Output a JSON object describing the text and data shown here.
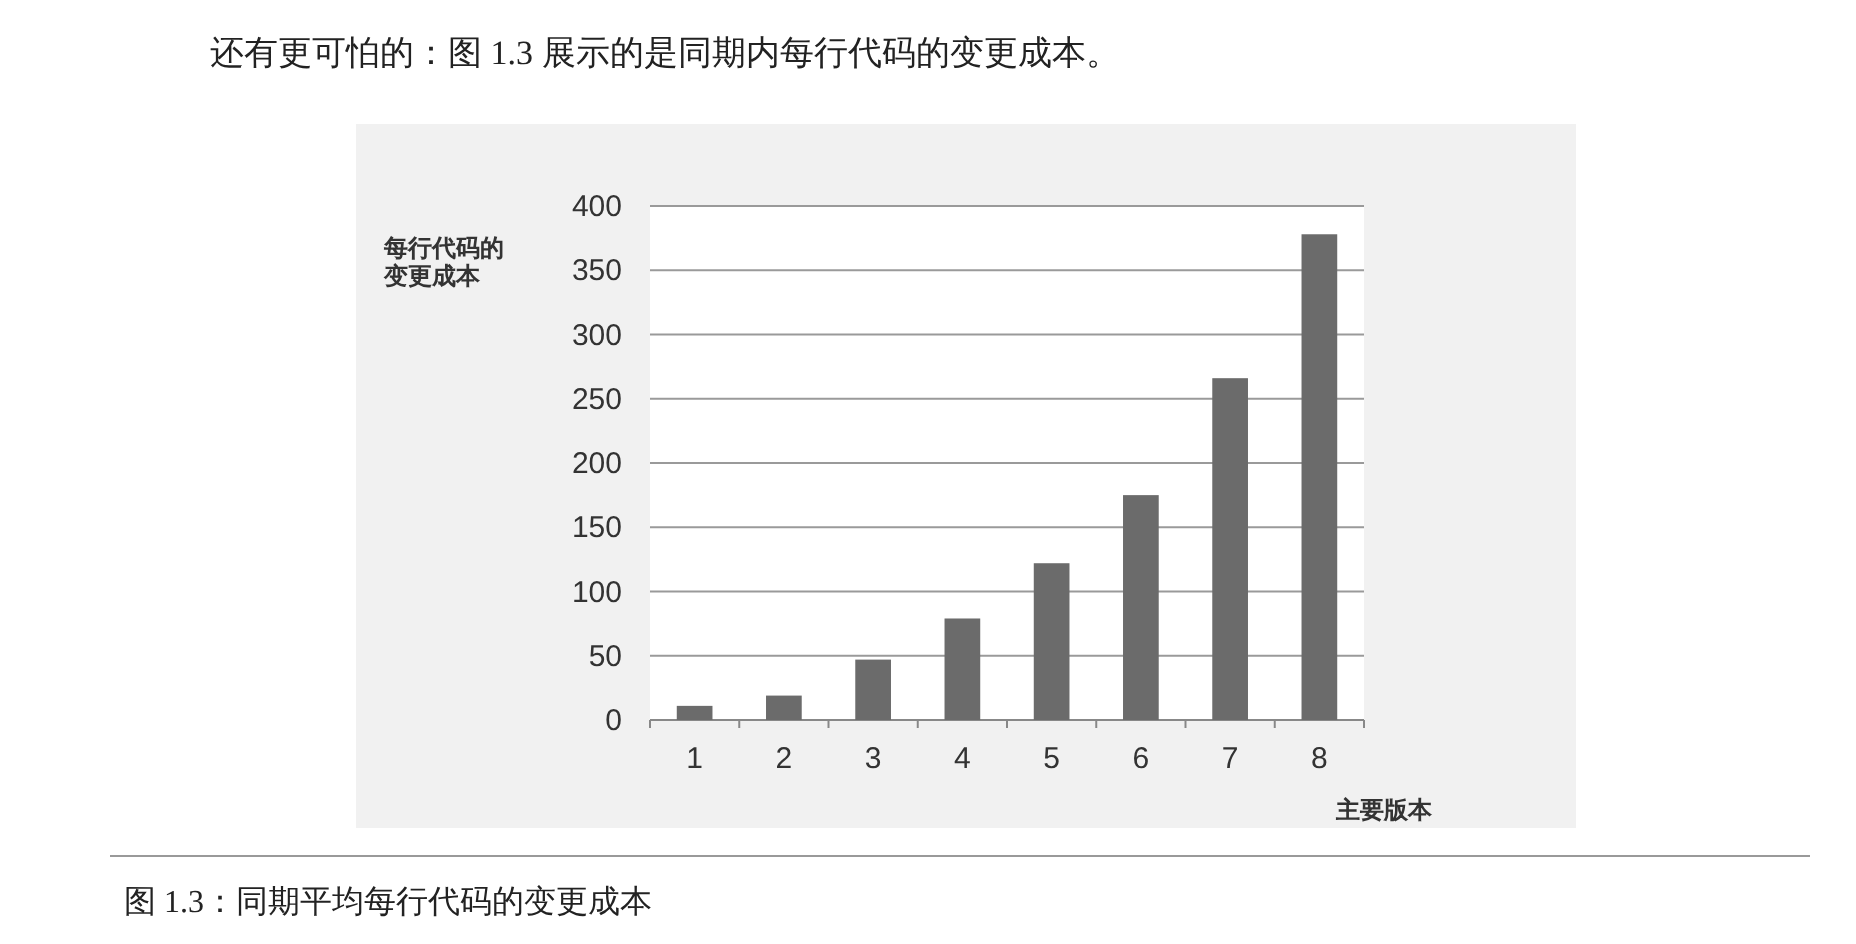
{
  "chart_data": {
    "type": "bar",
    "title": "还有更可怕的：图 1.3 展示的是同期内每行代码的变更成本。",
    "ylabel": "每行代码的变更成本",
    "xlabel": "主要版本",
    "categories": [
      "1",
      "2",
      "3",
      "4",
      "5",
      "6",
      "7",
      "8"
    ],
    "values": [
      11,
      19,
      47,
      79,
      122,
      175,
      266,
      378
    ],
    "color": "#6b6b6b",
    "ylim": [
      0,
      400
    ],
    "yticks": [
      0,
      50,
      100,
      150,
      200,
      250,
      300,
      350,
      400
    ],
    "grid": "y",
    "annotations": [
      "图 1.3：同期平均每行代码的变更成本"
    ]
  }
}
